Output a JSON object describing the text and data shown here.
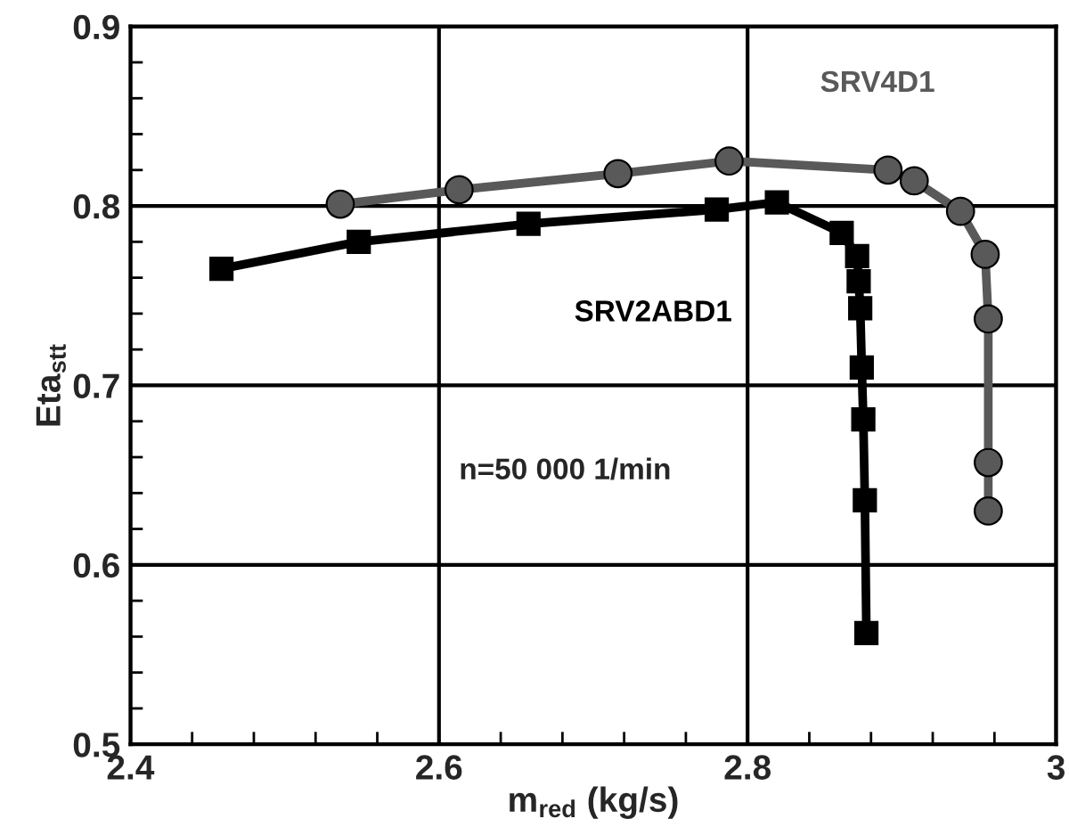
{
  "chart_data": {
    "type": "line",
    "xlabel": "m$_{red}$ (kg/s)",
    "ylabel": "Eta$_{stt}$",
    "annotations": [
      "n=50 000 1/min"
    ],
    "series": [
      {
        "name": "SRV2ABD1",
        "color": "#000000",
        "marker": "square",
        "x": [
          2.459,
          2.548,
          2.658,
          2.78,
          2.819,
          2.861,
          2.871,
          2.872,
          2.873,
          2.874,
          2.875,
          2.876,
          2.877
        ],
        "values": [
          0.765,
          0.78,
          0.79,
          0.798,
          0.802,
          0.785,
          0.772,
          0.758,
          0.743,
          0.71,
          0.681,
          0.636,
          0.562
        ]
      },
      {
        "name": "SRV4D1",
        "color": "#595959",
        "marker": "circle",
        "x": [
          2.536,
          2.613,
          2.716,
          2.788,
          2.891,
          2.908,
          2.938,
          2.954,
          2.956,
          2.956,
          2.956
        ],
        "values": [
          0.801,
          0.809,
          0.818,
          0.825,
          0.82,
          0.814,
          0.797,
          0.773,
          0.737,
          0.657,
          0.63
        ]
      }
    ],
    "xlim": [
      2.4,
      3.0
    ],
    "xticks": [
      {
        "value": 2.4,
        "label": "2.4"
      },
      {
        "value": 2.44,
        "label": null
      },
      {
        "value": 2.48,
        "label": null
      },
      {
        "value": 2.52,
        "label": null
      },
      {
        "value": 2.56,
        "label": null
      },
      {
        "value": 2.6,
        "label": "2.6"
      },
      {
        "value": 2.64,
        "label": null
      },
      {
        "value": 2.68,
        "label": null
      },
      {
        "value": 2.72,
        "label": null
      },
      {
        "value": 2.76,
        "label": null
      },
      {
        "value": 2.8,
        "label": "2.8"
      },
      {
        "value": 2.84,
        "label": null
      },
      {
        "value": 2.88,
        "label": null
      },
      {
        "value": 2.92,
        "label": null
      },
      {
        "value": 2.96,
        "label": null
      },
      {
        "value": 3.0,
        "label": "3"
      }
    ],
    "ylim": [
      0.5,
      0.9
    ],
    "yticks": [
      {
        "value": 0.5,
        "label": "0.5"
      },
      {
        "value": 0.52,
        "label": null
      },
      {
        "value": 0.54,
        "label": null
      },
      {
        "value": 0.56,
        "label": null
      },
      {
        "value": 0.58,
        "label": null
      },
      {
        "value": 0.6,
        "label": "0.6"
      },
      {
        "value": 0.62,
        "label": null
      },
      {
        "value": 0.64,
        "label": null
      },
      {
        "value": 0.66,
        "label": null
      },
      {
        "value": 0.68,
        "label": null
      },
      {
        "value": 0.7,
        "label": "0.7"
      },
      {
        "value": 0.72,
        "label": null
      },
      {
        "value": 0.74,
        "label": null
      },
      {
        "value": 0.76,
        "label": null
      },
      {
        "value": 0.78,
        "label": null
      },
      {
        "value": 0.8,
        "label": "0.8"
      },
      {
        "value": 0.82,
        "label": null
      },
      {
        "value": 0.84,
        "label": null
      },
      {
        "value": 0.86,
        "label": null
      },
      {
        "value": 0.88,
        "label": null
      },
      {
        "value": 0.9,
        "label": "0.9"
      }
    ],
    "grid": true,
    "line_style": "solid"
  }
}
